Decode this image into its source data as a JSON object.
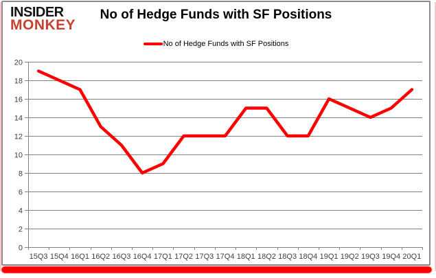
{
  "logo": {
    "line1": "INSIDER",
    "line2": "MONKEY"
  },
  "title": "No of Hedge Funds with SF Positions",
  "legend": {
    "label": "No of Hedge Funds with SF Positions"
  },
  "colors": {
    "accent_red": "#fe0000",
    "logo_red": "#c8412e",
    "border_gray": "#8c8c8c",
    "glow_pink": "#ffc9c9",
    "grid_gray": "#808080",
    "tick_label": "#3d3d3d"
  },
  "chart_data": {
    "type": "line",
    "title": "No of Hedge Funds with SF Positions",
    "categories": [
      "15Q3",
      "15Q4",
      "16Q1",
      "16Q2",
      "16Q3",
      "16Q4",
      "17Q1",
      "17Q2",
      "17Q3",
      "17Q4",
      "18Q1",
      "18Q2",
      "18Q3",
      "18Q4",
      "19Q1",
      "19Q2",
      "19Q3",
      "19Q4",
      "20Q1"
    ],
    "values": [
      19,
      18,
      17,
      13,
      11,
      8,
      9,
      12,
      12,
      12,
      15,
      15,
      12,
      12,
      16,
      15,
      14,
      15,
      17
    ],
    "series_name": "No of Hedge Funds with SF Positions",
    "xlabel": "",
    "ylabel": "",
    "ylim": [
      0,
      20
    ],
    "ytick_step": 2,
    "grid": true,
    "legend_position": "top-center",
    "line_color": "#fe0000",
    "line_width": 4.5
  }
}
